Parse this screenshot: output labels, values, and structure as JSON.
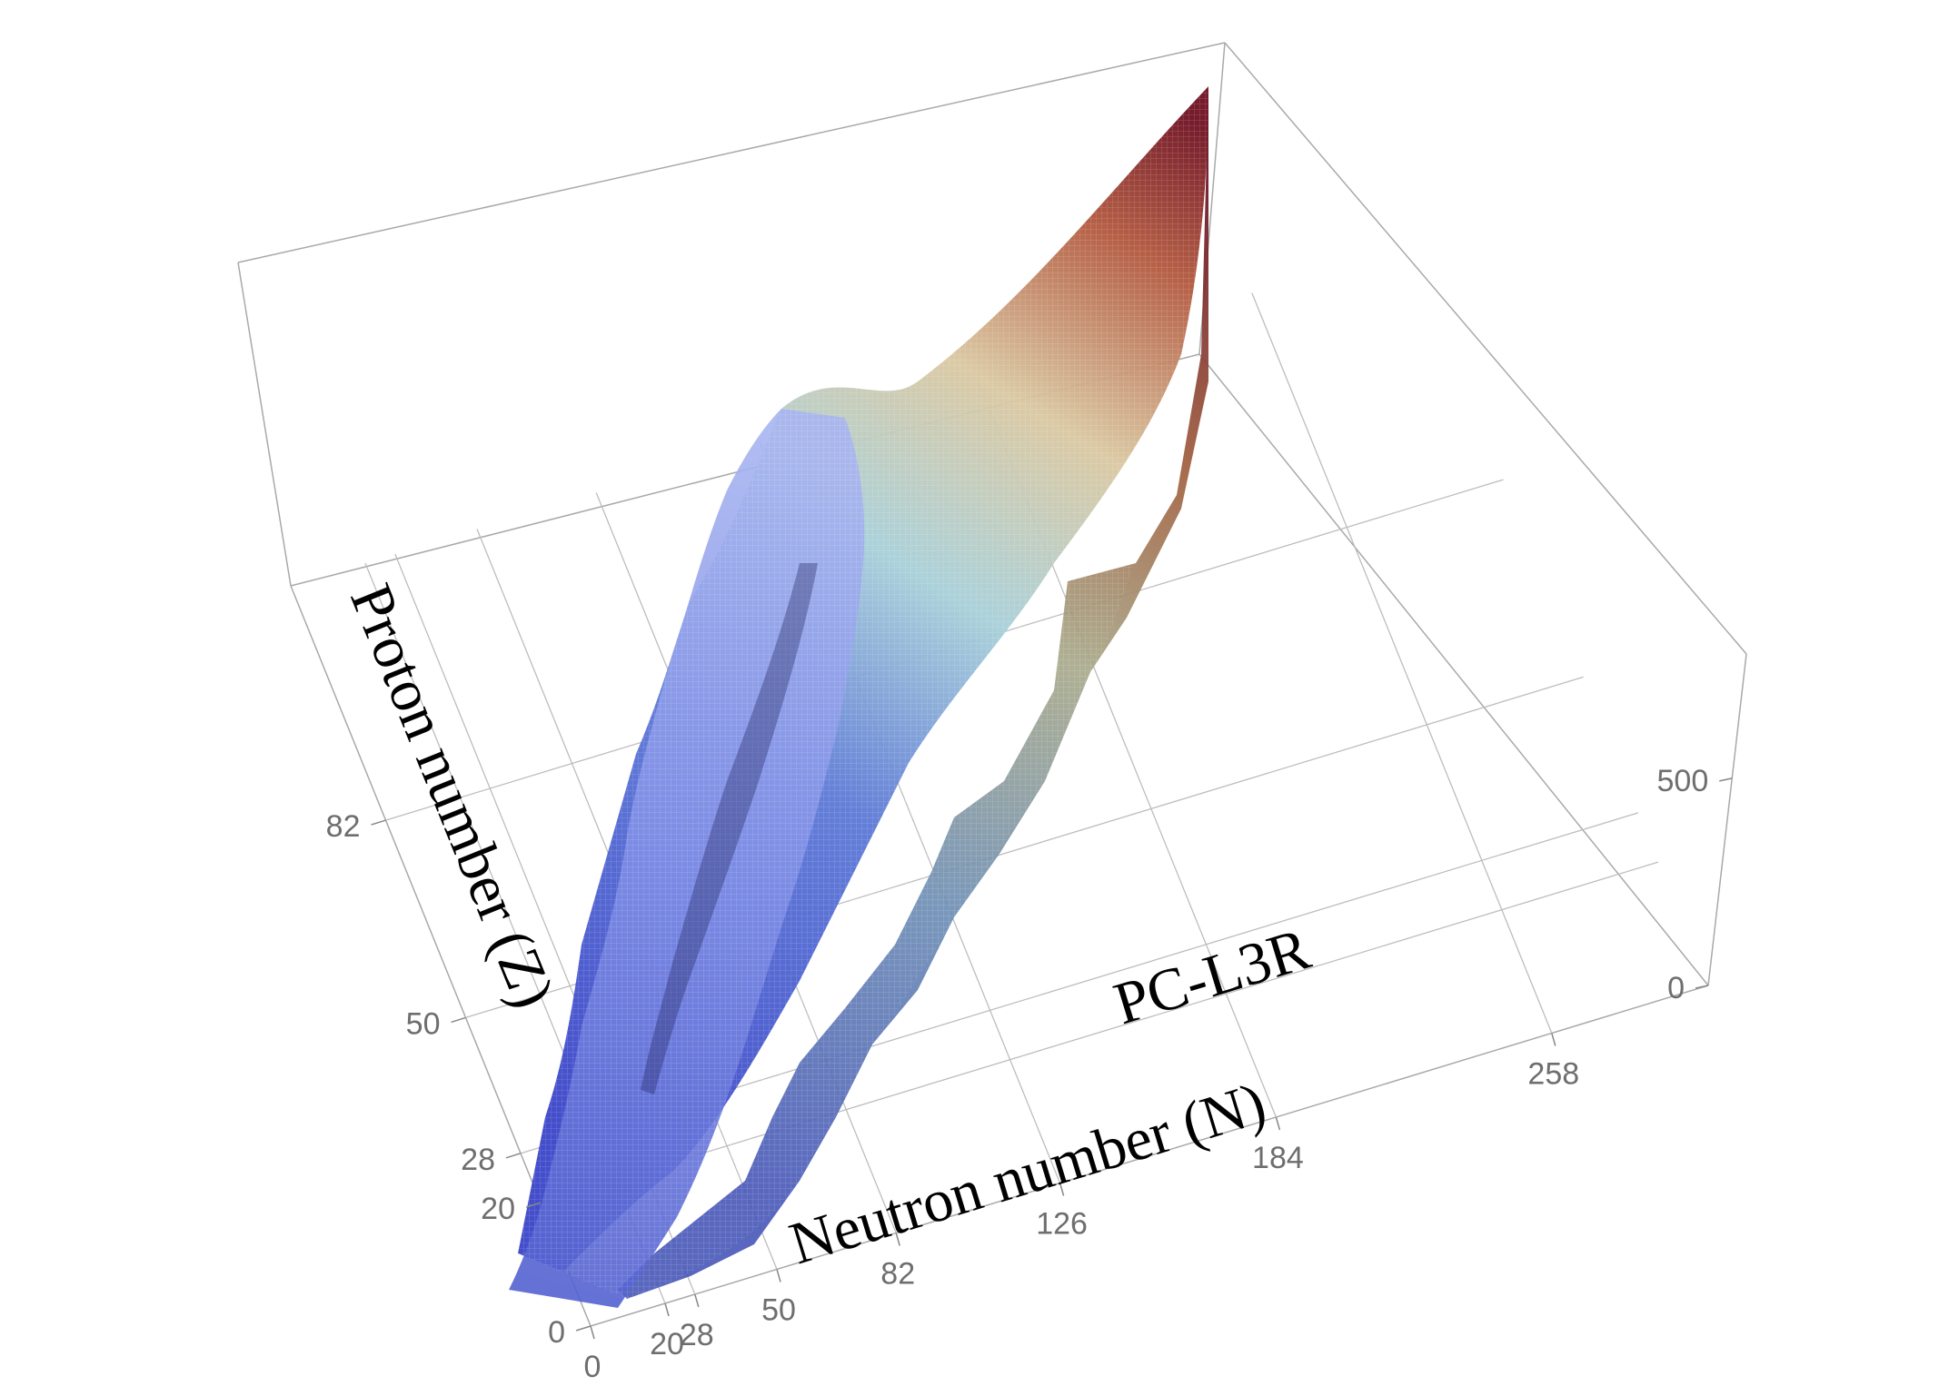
{
  "chart_data": {
    "type": "bar3d",
    "title": "PC-L3R",
    "xlabel": "Neutron number (N)",
    "ylabel": "Proton number (Z)",
    "zlabel": "",
    "x_ticks": [
      "0",
      "20",
      "28",
      "50",
      "82",
      "126",
      "184",
      "258"
    ],
    "y_ticks": [
      "0",
      "20",
      "28",
      "50",
      "82"
    ],
    "z_ticks": [
      "0",
      "500"
    ],
    "xlim": [
      0,
      300
    ],
    "ylim": [
      0,
      120
    ],
    "zlim": [
      0,
      800
    ],
    "grid": true,
    "colormap": "blue-to-red (rainbow)",
    "ridge_profile": [
      {
        "Z": 8,
        "N_min": 8,
        "N_max": 30,
        "z_max": 20
      },
      {
        "Z": 20,
        "N_min": 18,
        "N_max": 60,
        "z_max": 60
      },
      {
        "Z": 28,
        "N_min": 26,
        "N_max": 80,
        "z_max": 90
      },
      {
        "Z": 50,
        "N_min": 50,
        "N_max": 130,
        "z_max": 180
      },
      {
        "Z": 82,
        "N_min": 100,
        "N_max": 200,
        "z_max": 330
      },
      {
        "Z": 100,
        "N_min": 140,
        "N_max": 250,
        "z_max": 470
      },
      {
        "Z": 120,
        "N_min": 170,
        "N_max": 300,
        "z_max": 700
      }
    ]
  }
}
